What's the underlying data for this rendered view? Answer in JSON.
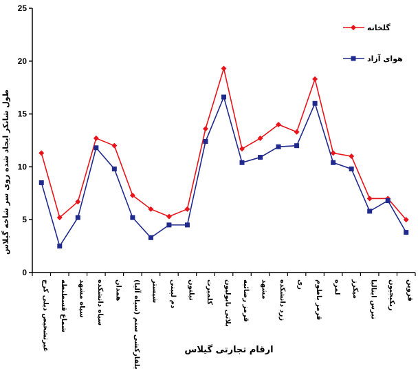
{
  "chart_data": {
    "type": "line",
    "ylim": [
      0,
      25
    ],
    "yticks": [
      0,
      5,
      10,
      15,
      20,
      25
    ],
    "ylabel": "طول شانکر ایجاد شده روی سر شاخه گیلاس",
    "xlabel": "ارقام تجارتی گیلاس",
    "grid": false,
    "legend_position": "top-right",
    "categories": [
      "غیرتشخیص دیلی کرج",
      "شماع قسطنطه",
      "سیاه مشهد",
      "سیاه دانشکده",
      "همدان",
      "بلفارکشی ستم (سیاه آلیا)",
      "شیستر",
      "دم لپینی",
      "تیلتون",
      "کلمبرت",
      "بلاتی نابولیون",
      "قرمز رضائیه",
      "مشهد",
      "زرد دانشکده",
      "ری",
      "قرمز باطوم",
      "لمزه",
      "میکرز",
      "تبرس ایتالیا",
      "ربکیجیون",
      "قزوین"
    ],
    "series": [
      {
        "name": "گلخانه",
        "color": "#e8141c",
        "marker": "diamond",
        "values": [
          11.3,
          5.2,
          6.7,
          12.7,
          12.0,
          7.3,
          6.0,
          5.3,
          6.0,
          13.6,
          19.3,
          11.7,
          12.7,
          14.0,
          13.3,
          18.3,
          11.3,
          11.0,
          7.0,
          7.0,
          5.0
        ]
      },
      {
        "name": "هوای آزاد",
        "color": "#1f2a8c",
        "marker": "square",
        "values": [
          8.5,
          2.5,
          5.2,
          11.8,
          9.8,
          5.2,
          3.3,
          4.5,
          4.5,
          12.4,
          16.6,
          10.4,
          10.9,
          11.9,
          12.0,
          16.0,
          10.4,
          9.8,
          5.8,
          6.8,
          3.8
        ]
      }
    ]
  }
}
